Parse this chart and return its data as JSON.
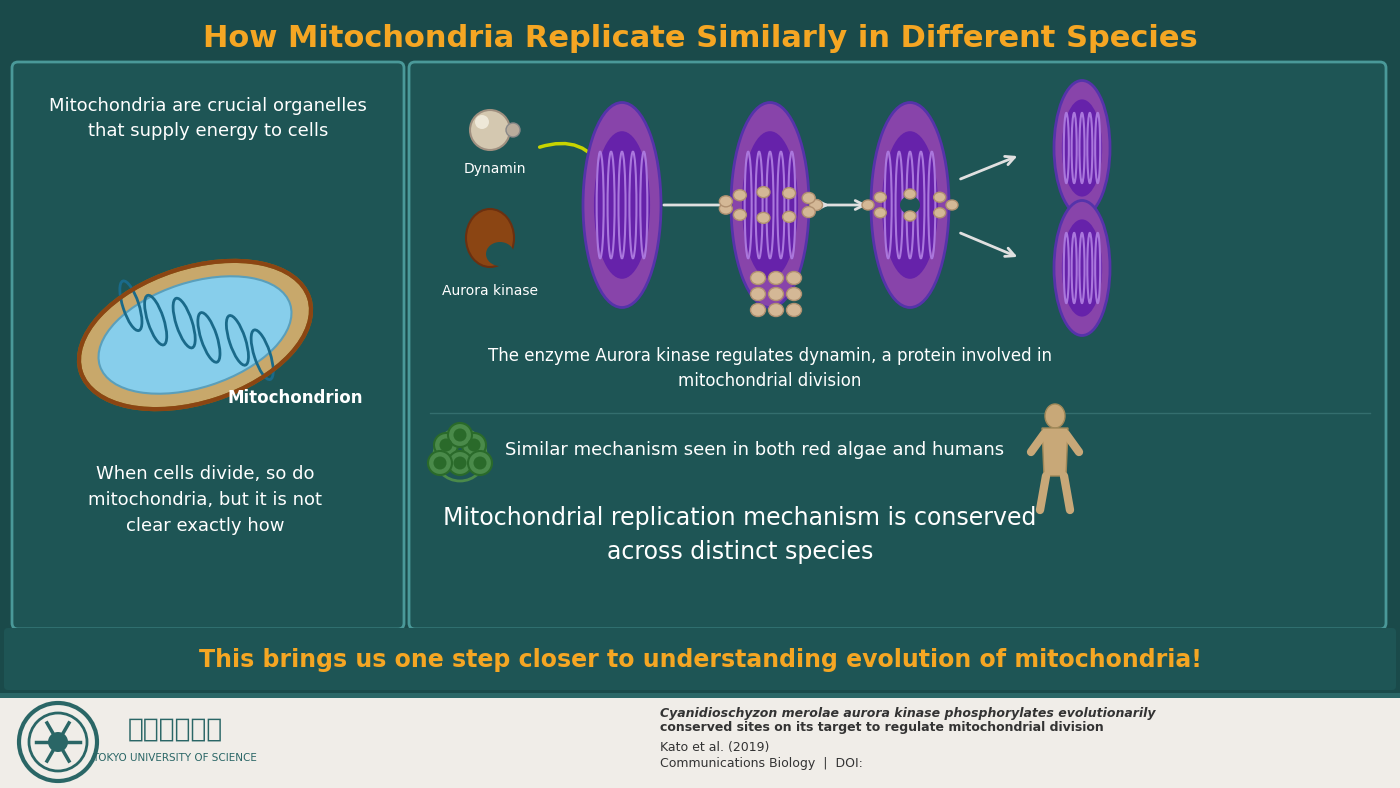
{
  "bg_color": "#1a4a4a",
  "title": "How Mitochondria Replicate Similarly in Different Species",
  "title_color": "#f5a623",
  "title_fontsize": 22,
  "footer_bg": "#f0ede8",
  "footer_bar_color": "#2a6666",
  "left_box_bg": "#1e5555",
  "left_box_border": "#4a9999",
  "right_box_bg": "#1e5555",
  "right_box_border": "#4a9999",
  "bottom_bar_bg": "#1e5555",
  "bottom_bar_text": "This brings us one step closer to understanding evolution of mitochondria!",
  "bottom_bar_text_color": "#f5a623",
  "left_title": "Mitochondria are crucial organelles\nthat supply energy to cells",
  "left_title_color": "#ffffff",
  "left_body": "When cells divide, so do\nmitochondria, but it is not\nclear exactly how",
  "left_body_color": "#ffffff",
  "mito_label": "Mitochondrion",
  "mito_label_color": "#ffffff",
  "enzyme_text": "The enzyme Aurora kinase regulates dynamin, a protein involved in\nmitochondrial division",
  "enzyme_text_color": "#ffffff",
  "similar_text": "Similar mechanism seen in both red algae and humans",
  "similar_text_color": "#ffffff",
  "conserved_text": "Mitochondrial replication mechanism is conserved\nacross distinct species",
  "conserved_text_color": "#ffffff",
  "dynamin_label": "Dynamin",
  "dynamin_label_color": "#ffffff",
  "aurora_label": "Aurora kinase",
  "aurora_label_color": "#ffffff",
  "footer_ref_line1": "Cyanidioschyzon merolae aurora kinase phosphorylates evolutionarily",
  "footer_ref_line2": "conserved sites on its target to regulate mitochondrial division",
  "footer_ref_line3": "Kato et al. (2019)",
  "footer_ref_line4": "Communications Biology  |  DOI:",
  "footer_text_color": "#333333",
  "mito_outer_color": "#c8a86b",
  "mito_inner_color": "#87ceeb",
  "mito_dark_color": "#8b4513",
  "purple_mito_color": "#8844aa",
  "arrow_color": "#e0e0e0",
  "dynamin_bead_color": "#d4b896",
  "aurora_color": "#8b4513",
  "green_algae_color": "#4a8a4a"
}
